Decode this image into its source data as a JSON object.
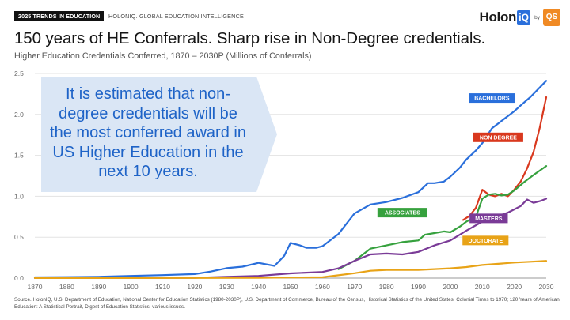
{
  "header": {
    "tag": "2025 TRENDS IN EDUCATION",
    "subtag": "HOLONIQ. GLOBAL EDUCATION INTELLIGENCE",
    "brand_name": "Holon",
    "brand_mark": "iQ",
    "brand_by": "by",
    "brand_partner": "QS"
  },
  "title": "150 years of HE Conferrals. Sharp rise in Non-Degree credentials.",
  "subtitle": "Higher Education Credentials Conferred, 1870 – 2030P (Millions of Conferrals)",
  "callout": "It is estimated that non-degree credentials will be the most conferred award in US Higher Education in the next 10 years.",
  "footnote": "Source. HolonIQ, U.S. Department of Education, National Center for Education Statistics (1980-2030P), U.S. Department of Commerce, Bureau of the Census, Historical Statistics of the United States, Colonial Times to 1970; 120 Years of American Education: A Statistical Portrait, Digest of Education Statistics, various issues.",
  "chart_data": {
    "type": "line",
    "title": "150 years of HE Conferrals. Sharp rise in Non-Degree credentials.",
    "xlim": [
      1870,
      2030
    ],
    "ylim": [
      0,
      2.5
    ],
    "x_ticks": [
      1870,
      1880,
      1890,
      1900,
      1910,
      1920,
      1930,
      1940,
      1950,
      1960,
      1970,
      1980,
      1990,
      2000,
      2010,
      2020,
      2030
    ],
    "y_ticks": [
      "0.0",
      "0.5",
      "1.0",
      "1.5",
      "2.0",
      "2.5"
    ],
    "grid": "horizontal",
    "series": [
      {
        "name": "BACHELORS",
        "color": "#2a6fdb",
        "points": [
          [
            1870,
            0.01
          ],
          [
            1880,
            0.013
          ],
          [
            1890,
            0.016
          ],
          [
            1900,
            0.027
          ],
          [
            1910,
            0.037
          ],
          [
            1920,
            0.049
          ],
          [
            1925,
            0.08
          ],
          [
            1930,
            0.122
          ],
          [
            1935,
            0.14
          ],
          [
            1940,
            0.186
          ],
          [
            1945,
            0.15
          ],
          [
            1948,
            0.27
          ],
          [
            1950,
            0.43
          ],
          [
            1953,
            0.4
          ],
          [
            1955,
            0.37
          ],
          [
            1958,
            0.37
          ],
          [
            1960,
            0.39
          ],
          [
            1965,
            0.54
          ],
          [
            1970,
            0.79
          ],
          [
            1975,
            0.9
          ],
          [
            1980,
            0.93
          ],
          [
            1985,
            0.98
          ],
          [
            1990,
            1.05
          ],
          [
            1993,
            1.16
          ],
          [
            1995,
            1.16
          ],
          [
            1998,
            1.18
          ],
          [
            2000,
            1.24
          ],
          [
            2003,
            1.35
          ],
          [
            2005,
            1.45
          ],
          [
            2008,
            1.56
          ],
          [
            2010,
            1.65
          ],
          [
            2013,
            1.83
          ],
          [
            2015,
            1.89
          ],
          [
            2018,
            1.98
          ],
          [
            2020,
            2.04
          ],
          [
            2022,
            2.11
          ],
          [
            2025,
            2.21
          ],
          [
            2028,
            2.33
          ],
          [
            2030,
            2.41
          ]
        ],
        "label_pos": [
          2013,
          2.2
        ]
      },
      {
        "name": "NON DEGREE",
        "color": "#d9381e",
        "points": [
          [
            2004,
            0.71
          ],
          [
            2006,
            0.76
          ],
          [
            2008,
            0.86
          ],
          [
            2010,
            1.08
          ],
          [
            2012,
            1.02
          ],
          [
            2014,
            1.0
          ],
          [
            2016,
            1.03
          ],
          [
            2018,
            1.0
          ],
          [
            2020,
            1.08
          ],
          [
            2022,
            1.18
          ],
          [
            2024,
            1.34
          ],
          [
            2026,
            1.54
          ],
          [
            2028,
            1.84
          ],
          [
            2030,
            2.21
          ]
        ],
        "label_pos": [
          2015,
          1.72
        ]
      },
      {
        "name": "ASSOCIATES",
        "color": "#36a13e",
        "points": [
          [
            1965,
            0.11
          ],
          [
            1970,
            0.21
          ],
          [
            1975,
            0.36
          ],
          [
            1980,
            0.4
          ],
          [
            1985,
            0.44
          ],
          [
            1990,
            0.46
          ],
          [
            1992,
            0.53
          ],
          [
            1995,
            0.55
          ],
          [
            1998,
            0.57
          ],
          [
            2000,
            0.56
          ],
          [
            2003,
            0.63
          ],
          [
            2005,
            0.69
          ],
          [
            2008,
            0.75
          ],
          [
            2010,
            0.97
          ],
          [
            2012,
            1.02
          ],
          [
            2014,
            1.03
          ],
          [
            2016,
            1.01
          ],
          [
            2018,
            1.02
          ],
          [
            2020,
            1.07
          ],
          [
            2023,
            1.17
          ],
          [
            2026,
            1.26
          ],
          [
            2030,
            1.37
          ]
        ],
        "label_pos": [
          1985,
          0.8
        ]
      },
      {
        "name": "MASTERS",
        "color": "#7a3b97",
        "points": [
          [
            1870,
            0.001
          ],
          [
            1900,
            0.002
          ],
          [
            1920,
            0.004
          ],
          [
            1930,
            0.015
          ],
          [
            1940,
            0.027
          ],
          [
            1950,
            0.058
          ],
          [
            1960,
            0.075
          ],
          [
            1965,
            0.12
          ],
          [
            1970,
            0.21
          ],
          [
            1975,
            0.29
          ],
          [
            1980,
            0.3
          ],
          [
            1985,
            0.29
          ],
          [
            1990,
            0.32
          ],
          [
            1995,
            0.4
          ],
          [
            2000,
            0.46
          ],
          [
            2005,
            0.58
          ],
          [
            2010,
            0.69
          ],
          [
            2015,
            0.76
          ],
          [
            2018,
            0.8
          ],
          [
            2020,
            0.84
          ],
          [
            2022,
            0.88
          ],
          [
            2024,
            0.96
          ],
          [
            2026,
            0.92
          ],
          [
            2028,
            0.94
          ],
          [
            2030,
            0.97
          ]
        ],
        "label_pos": [
          2012,
          0.73
        ]
      },
      {
        "name": "DOCTORATE",
        "color": "#e8a317",
        "points": [
          [
            1870,
            0.001
          ],
          [
            1900,
            0.001
          ],
          [
            1920,
            0.002
          ],
          [
            1940,
            0.004
          ],
          [
            1950,
            0.008
          ],
          [
            1960,
            0.011
          ],
          [
            1970,
            0.06
          ],
          [
            1975,
            0.09
          ],
          [
            1980,
            0.1
          ],
          [
            1985,
            0.1
          ],
          [
            1990,
            0.1
          ],
          [
            1995,
            0.11
          ],
          [
            2000,
            0.12
          ],
          [
            2005,
            0.135
          ],
          [
            2010,
            0.16
          ],
          [
            2015,
            0.175
          ],
          [
            2020,
            0.19
          ],
          [
            2025,
            0.2
          ],
          [
            2030,
            0.21
          ]
        ],
        "label_pos": [
          2011,
          0.46
        ]
      }
    ]
  }
}
